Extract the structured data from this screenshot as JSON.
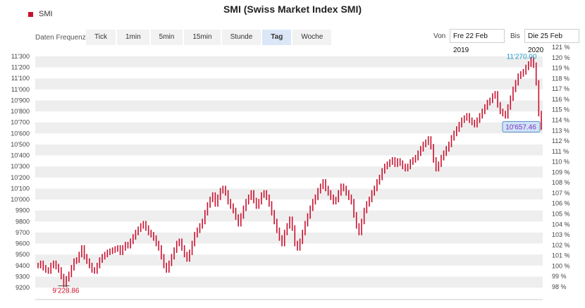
{
  "header": {
    "legend_label": "SMI",
    "legend_color": "#c8102e",
    "title": "SMI (Swiss Market Index SMI)"
  },
  "controls": {
    "frequency_label": "Daten Frequenz",
    "tabs": [
      {
        "label": "Tick",
        "active": false
      },
      {
        "label": "1min",
        "active": false
      },
      {
        "label": "5min",
        "active": false
      },
      {
        "label": "15min",
        "active": false
      },
      {
        "label": "Stunde",
        "active": false
      },
      {
        "label": "Tag",
        "active": true
      },
      {
        "label": "Woche",
        "active": false
      }
    ],
    "from_label": "Von",
    "from_value": "Fre 22 Feb 2019",
    "to_label": "Bis",
    "to_value": "Die 25 Feb 2020"
  },
  "chart_data": {
    "type": "line",
    "series": [
      {
        "name": "SMI",
        "color": "#c8102e"
      }
    ],
    "ylim": [
      9150,
      11350
    ],
    "left_axis_ticks": [
      "11'300",
      "11'200",
      "11'100",
      "11'000",
      "10'900",
      "10'800",
      "10'700",
      "10'600",
      "10'500",
      "10'400",
      "10'300",
      "10'200",
      "10'100",
      "10'000",
      "9900",
      "9800",
      "9700",
      "9600",
      "9500",
      "9400",
      "9300",
      "9200"
    ],
    "right_axis_ticks": [
      "121 %",
      "120 %",
      "119 %",
      "118 %",
      "117 %",
      "116 %",
      "115 %",
      "114 %",
      "113 %",
      "112 %",
      "111 %",
      "110 %",
      "109 %",
      "108 %",
      "107 %",
      "106 %",
      "105 %",
      "104 %",
      "103 %",
      "102 %",
      "101 %",
      "100 %",
      "99 %",
      "98 %"
    ],
    "right_axis_range_pct": [
      98,
      121
    ],
    "close_values": [
      9400,
      9420,
      9380,
      9360,
      9350,
      9400,
      9420,
      9390,
      9360,
      9300,
      9228.86,
      9280,
      9320,
      9380,
      9440,
      9450,
      9500,
      9560,
      9480,
      9440,
      9400,
      9360,
      9350,
      9400,
      9450,
      9480,
      9500,
      9520,
      9530,
      9540,
      9550,
      9560,
      9520,
      9560,
      9590,
      9580,
      9620,
      9660,
      9700,
      9730,
      9760,
      9780,
      9740,
      9700,
      9680,
      9650,
      9600,
      9560,
      9480,
      9400,
      9360,
      9420,
      9480,
      9540,
      9600,
      9620,
      9560,
      9500,
      9460,
      9520,
      9600,
      9680,
      9720,
      9760,
      9800,
      9880,
      9950,
      10000,
      10040,
      9960,
      10020,
      10080,
      10100,
      10060,
      9980,
      9940,
      9900,
      9840,
      9780,
      9850,
      9920,
      9980,
      10020,
      10060,
      9990,
      9940,
      9980,
      10040,
      10060,
      10020,
      9960,
      9880,
      9800,
      9720,
      9650,
      9600,
      9700,
      9760,
      9820,
      9740,
      9600,
      9560,
      9620,
      9700,
      9780,
      9850,
      9920,
      9980,
      10020,
      10080,
      10120,
      10160,
      10100,
      10060,
      10020,
      9980,
      10000,
      10060,
      10120,
      10100,
      10060,
      10020,
      9980,
      9860,
      9760,
      9700,
      9800,
      9900,
      9960,
      10000,
      10060,
      10100,
      10160,
      10200,
      10260,
      10300,
      10320,
      10340,
      10360,
      10320,
      10350,
      10330,
      10300,
      10280,
      10300,
      10340,
      10360,
      10380,
      10420,
      10460,
      10500,
      10520,
      10550,
      10480,
      10360,
      10280,
      10320,
      10380,
      10420,
      10460,
      10500,
      10560,
      10600,
      10640,
      10680,
      10720,
      10740,
      10760,
      10720,
      10700,
      10680,
      10720,
      10760,
      10800,
      10840,
      10880,
      10900,
      10940,
      10960,
      10860,
      10800,
      10780,
      10760,
      10840,
      10920,
      11000,
      11060,
      11120,
      11140,
      11160,
      11200,
      11230,
      11270,
      11220,
      11060,
      10780,
      10657.46
    ],
    "max_label": "11'270.00",
    "min_label": "9'228.86",
    "last_label": "10'657.46",
    "max_color": "#1a9acb",
    "min_color": "#c8102e",
    "last_color": "#7b2fbe"
  }
}
